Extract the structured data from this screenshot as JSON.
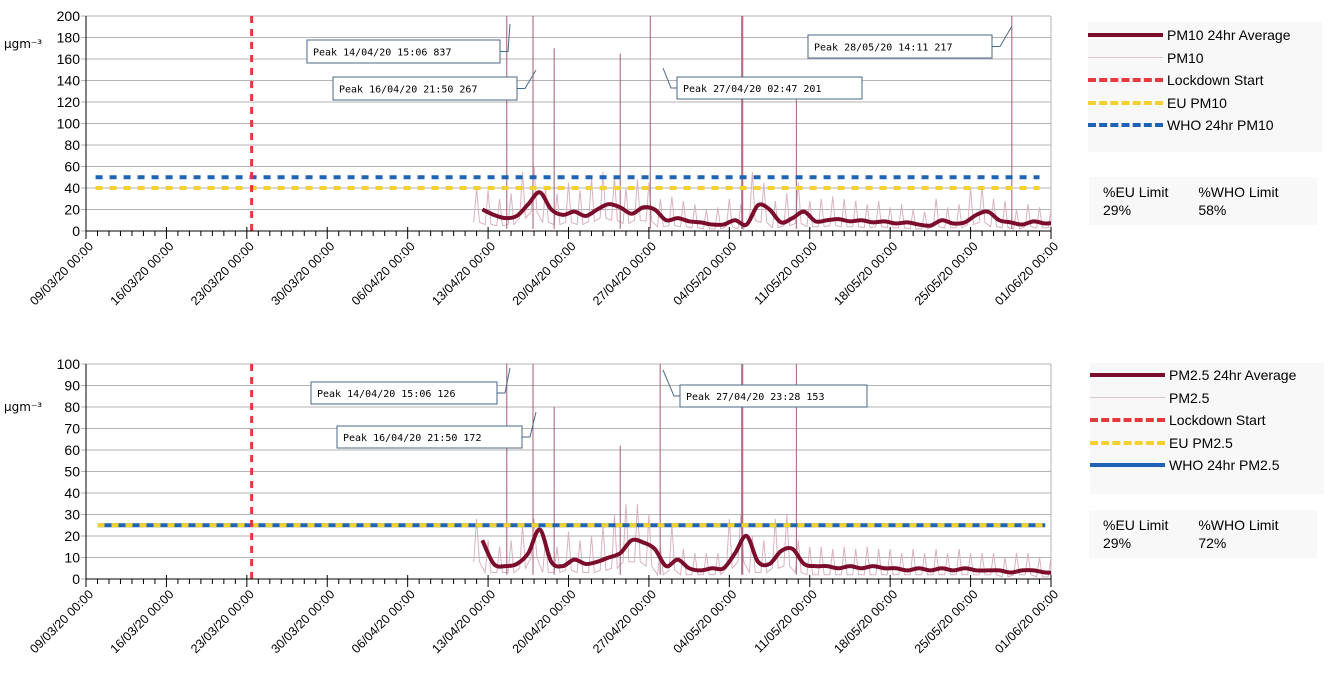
{
  "chart_data": [
    {
      "type": "line",
      "ylabel": "µgm⁻³",
      "ylim": [
        0,
        200
      ],
      "yticks": [
        0,
        20,
        40,
        60,
        80,
        100,
        120,
        140,
        160,
        180,
        200
      ],
      "xlim": [
        "09/03/20 00:00",
        "01/06/20 00:00"
      ],
      "xtick_labels": [
        "09/03/20 00:00",
        "16/03/20 00:00",
        "23/03/20 00:00",
        "30/03/20 00:00",
        "06/04/20 00:00",
        "13/04/20 00:00",
        "20/04/20 00:00",
        "27/04/20 00:00",
        "04/05/20 00:00",
        "11/05/20 00:00",
        "18/05/20 00:00",
        "25/05/20 00:00",
        "01/06/20 00:00"
      ],
      "grid": true,
      "legend_position": "right",
      "x": [
        "12/04/20",
        "13/04/20",
        "14/04/20",
        "15/04/20",
        "16/04/20",
        "17/04/20",
        "18/04/20",
        "19/04/20",
        "20/04/20",
        "21/04/20",
        "22/04/20",
        "23/04/20",
        "24/04/20",
        "25/04/20",
        "26/04/20",
        "27/04/20",
        "28/04/20",
        "29/04/20",
        "30/04/20",
        "01/05/20",
        "02/05/20",
        "03/05/20",
        "04/05/20",
        "05/05/20",
        "06/05/20",
        "07/05/20",
        "08/05/20",
        "09/05/20",
        "10/05/20",
        "11/05/20",
        "12/05/20",
        "13/05/20",
        "14/05/20",
        "15/05/20",
        "16/05/20",
        "17/05/20",
        "18/05/20",
        "19/05/20",
        "20/05/20",
        "21/05/20",
        "22/05/20",
        "23/05/20",
        "24/05/20",
        "25/05/20",
        "26/05/20",
        "27/05/20",
        "28/05/20",
        "29/05/20",
        "30/05/20",
        "31/05/20",
        "01/06/20"
      ],
      "series": [
        {
          "name": "PM10 24hr Average",
          "color": "#7b0c2c",
          "style": "solid-thick",
          "values": [
            20,
            15,
            12,
            14,
            25,
            36,
            20,
            15,
            18,
            14,
            20,
            25,
            22,
            16,
            22,
            20,
            10,
            12,
            9,
            8,
            6,
            6,
            10,
            6,
            24,
            20,
            8,
            12,
            18,
            9,
            10,
            11,
            9,
            10,
            8,
            9,
            7,
            8,
            6,
            5,
            10,
            7,
            8,
            15,
            18,
            10,
            8,
            6,
            9,
            7,
            8
          ]
        },
        {
          "name": "PM10",
          "color": "#d9b3bf",
          "style": "thin",
          "daily_high": [
            40,
            38,
            30,
            35,
            55,
            60,
            40,
            35,
            45,
            38,
            50,
            55,
            50,
            40,
            48,
            45,
            30,
            32,
            28,
            25,
            20,
            22,
            30,
            25,
            55,
            45,
            28,
            35,
            45,
            28,
            30,
            32,
            30,
            28,
            25,
            28,
            22,
            25,
            20,
            18,
            30,
            22,
            25,
            40,
            42,
            30,
            28,
            20,
            25,
            22,
            20
          ],
          "daily_low": [
            8,
            6,
            5,
            6,
            12,
            18,
            8,
            6,
            8,
            6,
            9,
            12,
            10,
            7,
            10,
            9,
            4,
            5,
            4,
            3,
            2,
            2,
            4,
            2,
            10,
            8,
            3,
            5,
            7,
            4,
            4,
            5,
            4,
            4,
            3,
            4,
            3,
            3,
            2,
            2,
            4,
            3,
            3,
            6,
            8,
            4,
            3,
            2,
            4,
            3,
            3
          ],
          "spikes": [
            [
              "14/04/20 15:06",
              837
            ],
            [
              "16/04/20 21:50",
              267
            ],
            [
              "18/04/20 18:00",
              170
            ],
            [
              "24/04/20 12:00",
              165
            ],
            [
              "27/04/20 02:47",
              201
            ],
            [
              "05/05/20 02:00",
              260
            ],
            [
              "05/05/20 04:00",
              230
            ],
            [
              "09/05/20 20:00",
              140
            ],
            [
              "28/05/20 14:11",
              217
            ]
          ]
        },
        {
          "name": "Lockdown Start",
          "color": "#e8383d",
          "style": "dashed",
          "x": "23/03/20 10:00"
        },
        {
          "name": "EU PM10",
          "color": "#f5d130",
          "style": "dashed",
          "y": 40,
          "range": [
            "09/03/20 20:00",
            "31/05/20 00:00"
          ]
        },
        {
          "name": "WHO 24hr PM10",
          "color": "#1f63b5",
          "style": "dashed",
          "y": 50,
          "range": [
            "09/03/20 20:00",
            "31/05/20 00:00"
          ]
        }
      ],
      "annotations": [
        {
          "text": "Peak 14/04/20 15:06 837"
        },
        {
          "text": "Peak 16/04/20 21:50 267"
        },
        {
          "text": "Peak 27/04/20 02:47 201"
        },
        {
          "text": "Peak 28/05/20 14:11 217"
        }
      ],
      "stats": {
        "eu_label": "%EU Limit",
        "eu_value": "29%",
        "who_label": "%WHO Limit",
        "who_value": "58%"
      }
    },
    {
      "type": "line",
      "ylabel": "µgm⁻³",
      "ylim": [
        0,
        100
      ],
      "yticks": [
        0,
        10,
        20,
        30,
        40,
        50,
        60,
        70,
        80,
        90,
        100
      ],
      "xlim": [
        "09/03/20 00:00",
        "01/06/20 00:00"
      ],
      "xtick_labels": [
        "09/03/20 00:00",
        "16/03/20 00:00",
        "23/03/20 00:00",
        "30/03/20 00:00",
        "06/04/20 00:00",
        "13/04/20 00:00",
        "20/04/20 00:00",
        "27/04/20 00:00",
        "04/05/20 00:00",
        "11/05/20 00:00",
        "18/05/20 00:00",
        "25/05/20 00:00",
        "01/06/20 00:00"
      ],
      "grid": true,
      "legend_position": "right",
      "x": [
        "12/04/20",
        "13/04/20",
        "14/04/20",
        "15/04/20",
        "16/04/20",
        "17/04/20",
        "18/04/20",
        "19/04/20",
        "20/04/20",
        "21/04/20",
        "22/04/20",
        "23/04/20",
        "24/04/20",
        "25/04/20",
        "26/04/20",
        "27/04/20",
        "28/04/20",
        "29/04/20",
        "30/04/20",
        "01/05/20",
        "02/05/20",
        "03/05/20",
        "04/05/20",
        "05/05/20",
        "06/05/20",
        "07/05/20",
        "08/05/20",
        "09/05/20",
        "10/05/20",
        "11/05/20",
        "12/05/20",
        "13/05/20",
        "14/05/20",
        "15/05/20",
        "16/05/20",
        "17/05/20",
        "18/05/20",
        "19/05/20",
        "20/05/20",
        "21/05/20",
        "22/05/20",
        "23/05/20",
        "24/05/20",
        "25/05/20",
        "26/05/20",
        "27/05/20",
        "28/05/20",
        "29/05/20",
        "30/05/20",
        "31/05/20",
        "01/06/20"
      ],
      "series": [
        {
          "name": "PM2.5 24hr Average",
          "color": "#7b0c2c",
          "style": "solid-thick",
          "values": [
            18,
            7,
            6,
            7,
            12,
            23,
            8,
            6,
            9,
            7,
            8,
            10,
            12,
            18,
            17,
            14,
            6,
            9,
            5,
            4,
            5,
            5,
            12,
            20,
            8,
            7,
            13,
            14,
            7,
            6,
            6,
            5,
            6,
            5,
            6,
            5,
            5,
            4,
            5,
            4,
            5,
            4,
            5,
            4,
            4,
            4,
            3,
            4,
            4,
            3,
            3
          ]
        },
        {
          "name": "PM2.5",
          "color": "#d9b3bf",
          "style": "thin",
          "daily_high": [
            28,
            18,
            15,
            18,
            25,
            28,
            18,
            15,
            22,
            18,
            20,
            25,
            30,
            35,
            35,
            30,
            15,
            25,
            14,
            12,
            12,
            12,
            28,
            30,
            20,
            18,
            28,
            30,
            18,
            15,
            15,
            14,
            15,
            14,
            15,
            14,
            14,
            12,
            14,
            12,
            14,
            12,
            14,
            12,
            12,
            12,
            10,
            12,
            12,
            10,
            10
          ],
          "daily_low": [
            8,
            3,
            3,
            3,
            5,
            10,
            3,
            3,
            4,
            3,
            3,
            4,
            5,
            8,
            8,
            6,
            2,
            4,
            2,
            2,
            2,
            2,
            5,
            8,
            3,
            3,
            5,
            6,
            3,
            2,
            2,
            2,
            2,
            2,
            2,
            2,
            2,
            2,
            2,
            2,
            2,
            2,
            2,
            2,
            2,
            2,
            1,
            2,
            2,
            1,
            1
          ],
          "spikes": [
            [
              "14/04/20 15:06",
              126
            ],
            [
              "16/04/20 21:50",
              172
            ],
            [
              "18/04/20 18:00",
              80
            ],
            [
              "24/04/20 12:00",
              62
            ],
            [
              "27/04/20 23:28",
              153
            ],
            [
              "05/05/20 02:00",
              130
            ],
            [
              "05/05/20 04:00",
              125
            ],
            [
              "09/05/20 20:00",
              110
            ]
          ]
        },
        {
          "name": "Lockdown Start",
          "color": "#e8383d",
          "style": "dashed",
          "x": "23/03/20 10:00"
        },
        {
          "name": "EU PM2.5",
          "color": "#f5d130",
          "style": "dashed",
          "y": 25,
          "range": [
            "10/03/20 00:00",
            "31/05/20 12:00"
          ]
        },
        {
          "name": "WHO 24hr PM2.5",
          "color": "#1f63b5",
          "style": "solid",
          "y": 25,
          "range": [
            "10/03/20 00:00",
            "31/05/20 12:00"
          ]
        }
      ],
      "annotations": [
        {
          "text": "Peak 14/04/20 15:06 126"
        },
        {
          "text": "Peak 16/04/20 21:50 172"
        },
        {
          "text": "Peak 27/04/20 23:28 153"
        }
      ],
      "stats": {
        "eu_label": "%EU Limit",
        "eu_value": "29%",
        "who_label": "%WHO Limit",
        "who_value": "72%"
      }
    }
  ]
}
